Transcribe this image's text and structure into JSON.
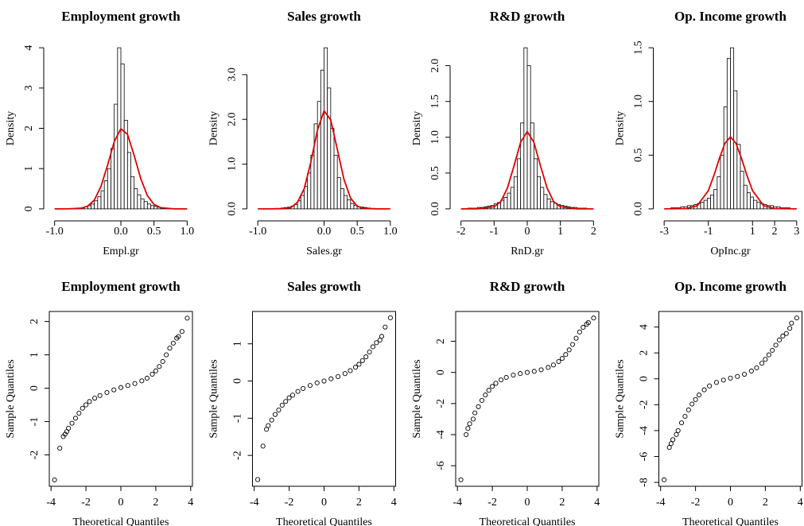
{
  "chart_data": [
    {
      "type": "histogram",
      "title": "Employment growth",
      "x_label": "Empl.gr",
      "y_label": "Density",
      "bar_color": "#ffffff",
      "bins": [
        -1.0,
        -0.95,
        -0.9,
        -0.85,
        -0.8,
        -0.75,
        -0.7,
        -0.65,
        -0.6,
        -0.55,
        -0.5,
        -0.45,
        -0.4,
        -0.35,
        -0.3,
        -0.25,
        -0.2,
        -0.15,
        -0.1,
        -0.05,
        0,
        0.05,
        0.1,
        0.15,
        0.2,
        0.25,
        0.3,
        0.35,
        0.4,
        0.45,
        0.5,
        0.55,
        0.6,
        0.65,
        0.7,
        0.75,
        0.8,
        0.85,
        0.9,
        0.95,
        1.0
      ],
      "values": [
        0,
        0,
        0,
        0,
        0.01,
        0.01,
        0.02,
        0.02,
        0.03,
        0.05,
        0.08,
        0.12,
        0.2,
        0.3,
        0.45,
        0.7,
        1.0,
        1.5,
        2.6,
        4.0,
        3.6,
        2.2,
        1.4,
        0.8,
        0.5,
        0.35,
        0.25,
        0.18,
        0.12,
        0.08,
        0.06,
        0.04,
        0.03,
        0.02,
        0.02,
        0.01,
        0.01,
        0,
        0,
        0
      ],
      "curve": {
        "color": "#e00000",
        "x": [
          -1,
          -0.8,
          -0.6,
          -0.5,
          -0.4,
          -0.3,
          -0.2,
          -0.1,
          0,
          0.1,
          0.2,
          0.3,
          0.4,
          0.5,
          0.6,
          0.8,
          1
        ],
        "y": [
          0,
          0,
          0.016,
          0.07,
          0.22,
          0.56,
          1.09,
          1.67,
          1.99,
          1.85,
          1.33,
          0.75,
          0.33,
          0.11,
          0.03,
          0,
          0
        ]
      },
      "xlim": [
        -1.08,
        1.08
      ],
      "ylim": [
        -0.16,
        4.16
      ],
      "xticks": [
        {
          "value": -1,
          "label": "-1.0"
        },
        {
          "value": 0,
          "label": "0.0"
        },
        {
          "value": 0.5,
          "label": "0.5"
        },
        {
          "value": 1,
          "label": "1.0"
        }
      ],
      "yticks": [
        0,
        1,
        2,
        3,
        4
      ]
    },
    {
      "type": "histogram",
      "title": "Sales growth",
      "x_label": "Sales.gr",
      "y_label": "Density",
      "bar_color": "#ffffff",
      "bins": [
        -1.0,
        -0.95,
        -0.9,
        -0.85,
        -0.8,
        -0.75,
        -0.7,
        -0.65,
        -0.6,
        -0.55,
        -0.5,
        -0.45,
        -0.4,
        -0.35,
        -0.3,
        -0.25,
        -0.2,
        -0.15,
        -0.1,
        -0.05,
        0,
        0.05,
        0.1,
        0.15,
        0.2,
        0.25,
        0.3,
        0.35,
        0.4,
        0.45,
        0.5,
        0.55,
        0.6,
        0.65,
        0.7,
        0.75,
        0.8,
        0.85,
        0.9,
        0.95,
        1.0
      ],
      "values": [
        0,
        0,
        0,
        0,
        0,
        0.01,
        0.01,
        0.02,
        0.03,
        0.04,
        0.06,
        0.1,
        0.18,
        0.3,
        0.5,
        0.8,
        1.2,
        1.9,
        2.4,
        3.1,
        3.6,
        2.7,
        1.8,
        1.2,
        0.7,
        0.45,
        0.3,
        0.2,
        0.12,
        0.08,
        0.05,
        0.04,
        0.03,
        0.02,
        0.01,
        0.01,
        0,
        0,
        0,
        0
      ],
      "curve": {
        "color": "#e00000",
        "x": [
          -1,
          -0.8,
          -0.6,
          -0.5,
          -0.4,
          -0.3,
          -0.2,
          -0.1,
          0,
          0.1,
          0.2,
          0.3,
          0.4,
          0.5,
          0.6,
          0.8,
          1
        ],
        "y": [
          0,
          0,
          0.006,
          0.03,
          0.15,
          0.45,
          1.04,
          1.76,
          2.19,
          1.99,
          1.33,
          0.66,
          0.24,
          0.06,
          0.01,
          0,
          0
        ]
      },
      "xlim": [
        -1.08,
        1.08
      ],
      "ylim": [
        -0.144,
        3.744
      ],
      "xticks": [
        {
          "value": -1,
          "label": "-1.0"
        },
        {
          "value": 0,
          "label": "0.0"
        },
        {
          "value": 0.5,
          "label": "0.5"
        },
        {
          "value": 1,
          "label": "1.0"
        }
      ],
      "yticks": [
        {
          "value": 0,
          "label": "0.0"
        },
        {
          "value": 1,
          "label": "1.0"
        },
        {
          "value": 2,
          "label": "2.0"
        },
        {
          "value": 3,
          "label": "3.0"
        }
      ]
    },
    {
      "type": "histogram",
      "title": "R&D growth",
      "x_label": "RnD.gr",
      "y_label": "Density",
      "bar_color": "#ffffff",
      "bins": [
        -2.0,
        -1.9,
        -1.8,
        -1.7,
        -1.6,
        -1.5,
        -1.4,
        -1.3,
        -1.2,
        -1.1,
        -1.0,
        -0.9,
        -0.8,
        -0.7,
        -0.6,
        -0.5,
        -0.4,
        -0.3,
        -0.2,
        -0.1,
        0,
        0.1,
        0.2,
        0.3,
        0.4,
        0.5,
        0.6,
        0.7,
        0.8,
        0.9,
        1.0,
        1.1,
        1.2,
        1.3,
        1.4,
        1.5,
        1.6,
        1.7,
        1.8,
        1.9,
        2.0
      ],
      "values": [
        0,
        0,
        0.01,
        0.01,
        0.01,
        0.02,
        0.02,
        0.03,
        0.04,
        0.05,
        0.07,
        0.09,
        0.12,
        0.16,
        0.22,
        0.3,
        0.45,
        0.7,
        1.2,
        2.25,
        2.0,
        1.2,
        0.7,
        0.45,
        0.3,
        0.2,
        0.14,
        0.1,
        0.08,
        0.06,
        0.05,
        0.04,
        0.03,
        0.02,
        0.02,
        0.01,
        0.01,
        0.01,
        0,
        0
      ],
      "curve": {
        "color": "#e00000",
        "x": [
          -2,
          -1.5,
          -1,
          -0.8,
          -0.6,
          -0.4,
          -0.2,
          0,
          0.2,
          0.4,
          0.6,
          0.8,
          1,
          1.5,
          2
        ],
        "y": [
          0,
          0,
          0.03,
          0.1,
          0.29,
          0.6,
          0.93,
          1.08,
          0.93,
          0.6,
          0.29,
          0.1,
          0.03,
          0,
          0
        ]
      },
      "xlim": [
        -2.16,
        2.16
      ],
      "ylim": [
        -0.09,
        2.34
      ],
      "xticks": [
        -2,
        -1,
        0,
        1,
        2
      ],
      "yticks": [
        {
          "value": 0,
          "label": "0.0"
        },
        {
          "value": 0.5,
          "label": "0.5"
        },
        {
          "value": 1,
          "label": "1.0"
        },
        {
          "value": 1.5,
          "label": "1.5"
        },
        {
          "value": 2,
          "label": "2.0"
        }
      ]
    },
    {
      "type": "histogram",
      "title": "Op. Income growth",
      "x_label": "OpInc.gr",
      "y_label": "Density",
      "bar_color": "#ffffff",
      "bins": [
        -3.0,
        -2.85,
        -2.7,
        -2.55,
        -2.4,
        -2.25,
        -2.1,
        -1.95,
        -1.8,
        -1.65,
        -1.5,
        -1.35,
        -1.2,
        -1.05,
        -0.9,
        -0.75,
        -0.6,
        -0.45,
        -0.3,
        -0.15,
        0,
        0.15,
        0.3,
        0.45,
        0.6,
        0.75,
        0.9,
        1.05,
        1.2,
        1.35,
        1.5,
        1.65,
        1.8,
        1.95,
        2.1,
        2.25,
        2.4,
        2.55,
        2.7,
        2.85,
        3.0
      ],
      "values": [
        0,
        0,
        0.01,
        0.01,
        0.01,
        0.02,
        0.02,
        0.03,
        0.03,
        0.04,
        0.05,
        0.06,
        0.08,
        0.1,
        0.13,
        0.18,
        0.3,
        0.5,
        0.95,
        1.4,
        1.5,
        1.1,
        0.6,
        0.35,
        0.22,
        0.15,
        0.11,
        0.08,
        0.06,
        0.05,
        0.04,
        0.03,
        0.03,
        0.02,
        0.02,
        0.01,
        0.01,
        0.01,
        0,
        0
      ],
      "curve": {
        "color": "#e00000",
        "x": [
          -3,
          -2,
          -1.5,
          -1,
          -0.75,
          -0.5,
          -0.25,
          0,
          0.25,
          0.5,
          0.75,
          1,
          1.5,
          2,
          3
        ],
        "y": [
          0,
          0.003,
          0.03,
          0.17,
          0.31,
          0.47,
          0.61,
          0.67,
          0.61,
          0.47,
          0.31,
          0.17,
          0.03,
          0.003,
          0
        ]
      },
      "xlim": [
        -3.24,
        3.24
      ],
      "ylim": [
        -0.06,
        1.56
      ],
      "xticks": [
        -3,
        -1,
        1,
        2,
        3
      ],
      "yticks": [
        {
          "value": 0,
          "label": "0.0"
        },
        {
          "value": 0.5,
          "label": "0.5"
        },
        {
          "value": 1,
          "label": "1.0"
        },
        {
          "value": 1.5,
          "label": "1.5"
        }
      ]
    },
    {
      "type": "scatter",
      "title": "Employment growth",
      "x_label": "Theoretical Quantiles",
      "y_label": "Sample Quantiles",
      "color": "#000000",
      "x": [
        -3.8,
        -3.5,
        -3.3,
        -3.2,
        -3.1,
        -3,
        -2.8,
        -2.6,
        -2.4,
        -2.2,
        -2,
        -1.8,
        -1.5,
        -1.2,
        -0.8,
        -0.4,
        0,
        0.4,
        0.8,
        1.2,
        1.5,
        1.8,
        2,
        2.2,
        2.4,
        2.6,
        2.8,
        3,
        3.2,
        3.3,
        3.5,
        3.8
      ],
      "values": [
        -2.75,
        -1.8,
        -1.45,
        -1.38,
        -1.3,
        -1.2,
        -1.05,
        -0.9,
        -0.75,
        -0.6,
        -0.5,
        -0.4,
        -0.3,
        -0.22,
        -0.13,
        -0.05,
        0.02,
        0.08,
        0.14,
        0.22,
        0.3,
        0.42,
        0.52,
        0.65,
        0.8,
        1.0,
        1.2,
        1.35,
        1.5,
        1.55,
        1.7,
        2.1
      ],
      "xlim": [
        -4.1,
        4.1
      ],
      "ylim": [
        -2.94,
        2.3
      ],
      "xticks": [
        -4,
        -2,
        0,
        2,
        4
      ],
      "yticks": [
        -2,
        -1,
        0,
        1,
        2
      ]
    },
    {
      "type": "scatter",
      "title": "Sales growth",
      "x_label": "Theoretical Quantiles",
      "y_label": "Sample Quantiles",
      "color": "#000000",
      "x": [
        -3.8,
        -3.5,
        -3.3,
        -3.2,
        -3,
        -2.8,
        -2.6,
        -2.4,
        -2.2,
        -2,
        -1.8,
        -1.5,
        -1.2,
        -0.8,
        -0.4,
        0,
        0.4,
        0.8,
        1.2,
        1.5,
        1.8,
        2,
        2.2,
        2.4,
        2.6,
        2.8,
        3,
        3.2,
        3.3,
        3.5,
        3.8
      ],
      "values": [
        -2.65,
        -1.75,
        -1.3,
        -1.2,
        -1.05,
        -0.9,
        -0.78,
        -0.65,
        -0.55,
        -0.45,
        -0.38,
        -0.28,
        -0.2,
        -0.12,
        -0.05,
        0,
        0.06,
        0.12,
        0.2,
        0.28,
        0.37,
        0.45,
        0.55,
        0.65,
        0.78,
        0.92,
        1.03,
        1.1,
        1.2,
        1.45,
        1.7
      ],
      "xlim": [
        -4.1,
        4.1
      ],
      "ylim": [
        -2.83,
        1.87
      ],
      "xticks": [
        -4,
        -2,
        0,
        2,
        4
      ],
      "yticks": [
        -2,
        -1,
        0,
        1
      ]
    },
    {
      "type": "scatter",
      "title": "R&D growth",
      "x_label": "Theoretical Quantiles",
      "y_label": "Sample Quantiles",
      "color": "#000000",
      "x": [
        -3.8,
        -3.5,
        -3.4,
        -3.3,
        -3.1,
        -3,
        -2.8,
        -2.6,
        -2.4,
        -2.2,
        -2,
        -1.8,
        -1.5,
        -1.2,
        -0.8,
        -0.4,
        0,
        0.4,
        0.8,
        1.2,
        1.5,
        1.8,
        2,
        2.2,
        2.4,
        2.6,
        2.8,
        3,
        3.2,
        3.4,
        3.5,
        3.8
      ],
      "values": [
        -6.9,
        -4.0,
        -3.6,
        -3.3,
        -3.0,
        -2.6,
        -2.2,
        -1.8,
        -1.45,
        -1.15,
        -0.9,
        -0.7,
        -0.48,
        -0.32,
        -0.17,
        -0.07,
        0,
        0.07,
        0.17,
        0.32,
        0.48,
        0.7,
        0.9,
        1.15,
        1.45,
        1.8,
        2.2,
        2.6,
        2.9,
        3.1,
        3.2,
        3.5
      ],
      "xlim": [
        -4.1,
        4.1
      ],
      "ylim": [
        -7.32,
        3.92
      ],
      "xticks": [
        -4,
        -2,
        0,
        2,
        4
      ],
      "yticks": [
        -6,
        -4,
        -2,
        0,
        2
      ]
    },
    {
      "type": "scatter",
      "title": "Op. Income growth",
      "x_label": "Theoretical Quantiles",
      "y_label": "Sample Quantiles",
      "color": "#000000",
      "x": [
        -3.8,
        -3.5,
        -3.4,
        -3.3,
        -3.1,
        -3,
        -2.8,
        -2.6,
        -2.4,
        -2.2,
        -2,
        -1.8,
        -1.5,
        -1.2,
        -0.8,
        -0.4,
        0,
        0.4,
        0.8,
        1.2,
        1.5,
        1.8,
        2,
        2.2,
        2.4,
        2.6,
        2.8,
        3,
        3.2,
        3.4,
        3.5,
        3.8
      ],
      "values": [
        -7.8,
        -5.3,
        -5.0,
        -4.7,
        -4.3,
        -4.0,
        -3.4,
        -2.9,
        -2.4,
        -1.95,
        -1.6,
        -1.25,
        -0.85,
        -0.55,
        -0.28,
        -0.1,
        0.05,
        0.18,
        0.35,
        0.6,
        0.85,
        1.2,
        1.5,
        1.85,
        2.2,
        2.6,
        3.0,
        3.3,
        3.5,
        3.9,
        4.3,
        4.7
      ],
      "xlim": [
        -4.1,
        4.1
      ],
      "ylim": [
        -8.3,
        5.2
      ],
      "xticks": [
        -4,
        -2,
        0,
        2,
        4
      ],
      "yticks": [
        -8,
        -6,
        -4,
        -2,
        0,
        2,
        4
      ]
    }
  ]
}
